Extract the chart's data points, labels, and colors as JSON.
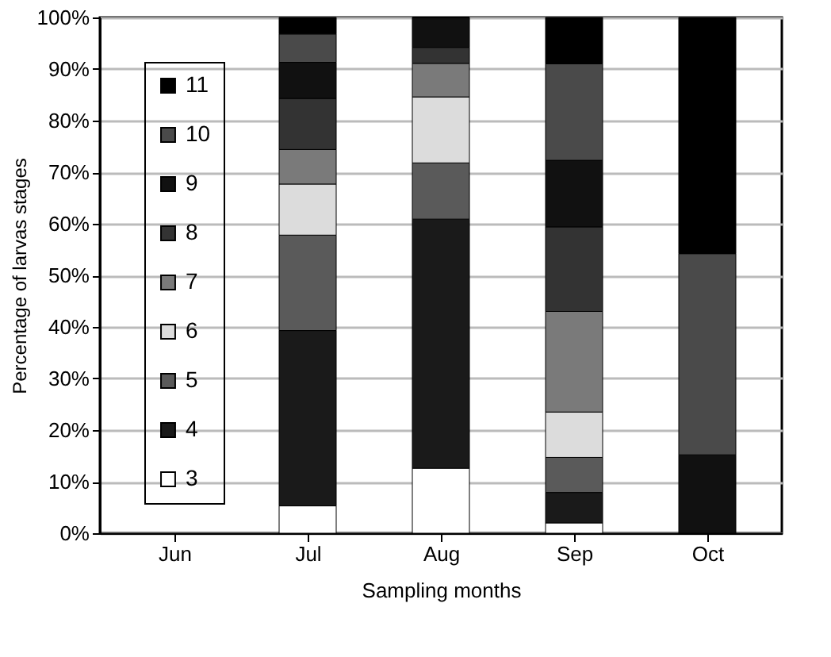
{
  "chart_data": {
    "type": "bar",
    "stacked": true,
    "xlabel": "Sampling months",
    "ylabel": "Percentage of larvas stages",
    "categories": [
      "Jun",
      "Jul",
      "Aug",
      "Sep",
      "Oct"
    ],
    "series": [
      {
        "name": "3",
        "color": "#ffffff",
        "values": [
          null,
          5.3,
          12.6,
          2,
          0
        ]
      },
      {
        "name": "4",
        "color": "#1a1a1a",
        "values": [
          null,
          34,
          48.3,
          5.9,
          0
        ]
      },
      {
        "name": "5",
        "color": "#5a5a5a",
        "values": [
          null,
          18.5,
          10.9,
          6.8,
          0
        ]
      },
      {
        "name": "6",
        "color": "#dcdcdc",
        "values": [
          null,
          9.9,
          12.8,
          8.8,
          0
        ]
      },
      {
        "name": "7",
        "color": "#7a7a7a",
        "values": [
          null,
          6.7,
          6.5,
          19.5,
          0
        ]
      },
      {
        "name": "8",
        "color": "#333333",
        "values": [
          null,
          9.9,
          3.1,
          16.4,
          0
        ]
      },
      {
        "name": "9",
        "color": "#111111",
        "values": [
          null,
          7,
          5.8,
          12.9,
          15.2
        ]
      },
      {
        "name": "10",
        "color": "#4a4a4a",
        "values": [
          null,
          5.5,
          0,
          18.7,
          39
        ]
      },
      {
        "name": "11",
        "color": "#000000",
        "values": [
          null,
          3.2,
          0,
          9,
          45.8
        ]
      }
    ],
    "ylim": [
      0,
      100
    ],
    "yticks": [
      {
        "value": 0,
        "label": "0%"
      },
      {
        "value": 10,
        "label": "10%"
      },
      {
        "value": 20,
        "label": "20%"
      },
      {
        "value": 30,
        "label": "30%"
      },
      {
        "value": 40,
        "label": "40%"
      },
      {
        "value": 50,
        "label": "50%"
      },
      {
        "value": 60,
        "label": "60%"
      },
      {
        "value": 70,
        "label": "70%"
      },
      {
        "value": 80,
        "label": "80%"
      },
      {
        "value": 90,
        "label": "90%"
      },
      {
        "value": 100,
        "label": "100%"
      }
    ],
    "grid": "y",
    "legend": "left"
  }
}
